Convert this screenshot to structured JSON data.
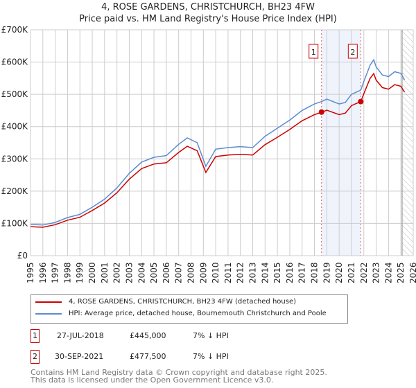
{
  "chart_data": {
    "type": "line",
    "title": "4, ROSE GARDENS, CHRISTCHURCH, BH23 4FW",
    "subtitle": "Price paid vs. HM Land Registry's House Price Index (HPI)",
    "xlim": [
      1995,
      2026
    ],
    "ylim": [
      0,
      700000
    ],
    "y_ticks": [
      {
        "v": 0,
        "label": "£0"
      },
      {
        "v": 100000,
        "label": "£100K"
      },
      {
        "v": 200000,
        "label": "£200K"
      },
      {
        "v": 300000,
        "label": "£300K"
      },
      {
        "v": 400000,
        "label": "£400K"
      },
      {
        "v": 500000,
        "label": "£500K"
      },
      {
        "v": 600000,
        "label": "£600K"
      },
      {
        "v": 700000,
        "label": "£700K"
      }
    ],
    "x_ticks": [
      "1995",
      "1996",
      "1997",
      "1998",
      "1999",
      "2000",
      "2001",
      "2002",
      "2003",
      "2004",
      "2005",
      "2006",
      "2007",
      "2008",
      "2009",
      "2010",
      "2011",
      "2012",
      "2013",
      "2014",
      "2015",
      "2016",
      "2017",
      "2018",
      "2019",
      "2020",
      "2021",
      "2022",
      "2023",
      "2024",
      "2025",
      "2026"
    ],
    "grid": true,
    "x": [
      1995,
      1996,
      1997,
      1998,
      1999,
      2000,
      2001,
      2002,
      2003,
      2004,
      2005,
      2006,
      2007,
      2007.7,
      2008.5,
      2009.2,
      2010,
      2011,
      2012,
      2013,
      2014,
      2015,
      2016,
      2017,
      2018,
      2018.6,
      2019,
      2020,
      2020.5,
      2021,
      2021.75,
      2022,
      2022.5,
      2022.8,
      2023,
      2023.5,
      2024,
      2024.5,
      2025,
      2025.3
    ],
    "series": [
      {
        "name": "4, ROSE GARDENS, CHRISTCHURCH, BH23 4FW (detached house)",
        "color": "#cc0000",
        "values": [
          90000,
          88000,
          96000,
          110000,
          119000,
          140000,
          163000,
          195000,
          237000,
          270000,
          284000,
          288000,
          320000,
          339000,
          325000,
          258000,
          307000,
          312000,
          314000,
          312000,
          344000,
          367000,
          391000,
          418000,
          437000,
          445000,
          451000,
          437000,
          442000,
          465000,
          477500,
          502000,
          549000,
          564000,
          544000,
          521000,
          516000,
          530000,
          525000,
          507000
        ]
      },
      {
        "name": "HPI: Average price, detached house, Bournemouth Christchurch and Poole",
        "color": "#5b8bd0",
        "values": [
          97000,
          95000,
          103000,
          118000,
          128000,
          150000,
          175000,
          210000,
          255000,
          290000,
          305000,
          310000,
          345000,
          365000,
          350000,
          277000,
          330000,
          335000,
          338000,
          335000,
          370000,
          395000,
          420000,
          450000,
          470000,
          478000,
          485000,
          470000,
          475000,
          500000,
          513000,
          540000,
          590000,
          607000,
          585000,
          560000,
          555000,
          570000,
          565000,
          545000
        ]
      }
    ],
    "sales": [
      {
        "label": "1",
        "x": 2018.57,
        "price": 445000
      },
      {
        "label": "2",
        "x": 2021.75,
        "price": 477500
      }
    ],
    "shaded_range": [
      2018.57,
      2021.75
    ],
    "hatched_from": 2025.1,
    "legend_position": "bottom"
  },
  "table": [
    {
      "num": "1",
      "date": "27-JUL-2018",
      "price": "£445,000",
      "hpi": "7% ↓ HPI"
    },
    {
      "num": "2",
      "date": "30-SEP-2021",
      "price": "£477,500",
      "hpi": "7% ↓ HPI"
    }
  ],
  "footer": [
    "Contains HM Land Registry data © Crown copyright and database right 2025.",
    "This data is licensed under the Open Government Licence v3.0."
  ]
}
